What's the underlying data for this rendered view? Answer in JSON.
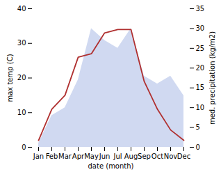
{
  "chart_data": {
    "type": "line",
    "xlabel": "date (month)",
    "ylabel": "max temp (C)",
    "y2label": "med. precipitation (kg/m2)",
    "categories": [
      "Jan",
      "Feb",
      "Mar",
      "Apr",
      "May",
      "Jun",
      "Jul",
      "Aug",
      "Sep",
      "Oct",
      "Nov",
      "Dec"
    ],
    "series": [
      {
        "type": "area",
        "color": "#b0c0e8",
        "axis": "y2",
        "values": [
          1,
          8,
          10,
          17,
          30,
          27,
          25,
          30,
          18,
          16,
          18,
          13
        ]
      },
      {
        "type": "line",
        "color": "#b03030",
        "values": [
          2,
          11,
          15,
          26,
          27,
          33,
          34,
          34,
          19,
          11,
          5,
          2
        ]
      }
    ],
    "ylim": [
      0,
      40
    ],
    "yticks": [
      0,
      10,
      20,
      30,
      40
    ],
    "y2lim": [
      0,
      35
    ],
    "y2ticks": [
      0,
      5,
      10,
      15,
      20,
      25,
      30,
      35
    ]
  }
}
